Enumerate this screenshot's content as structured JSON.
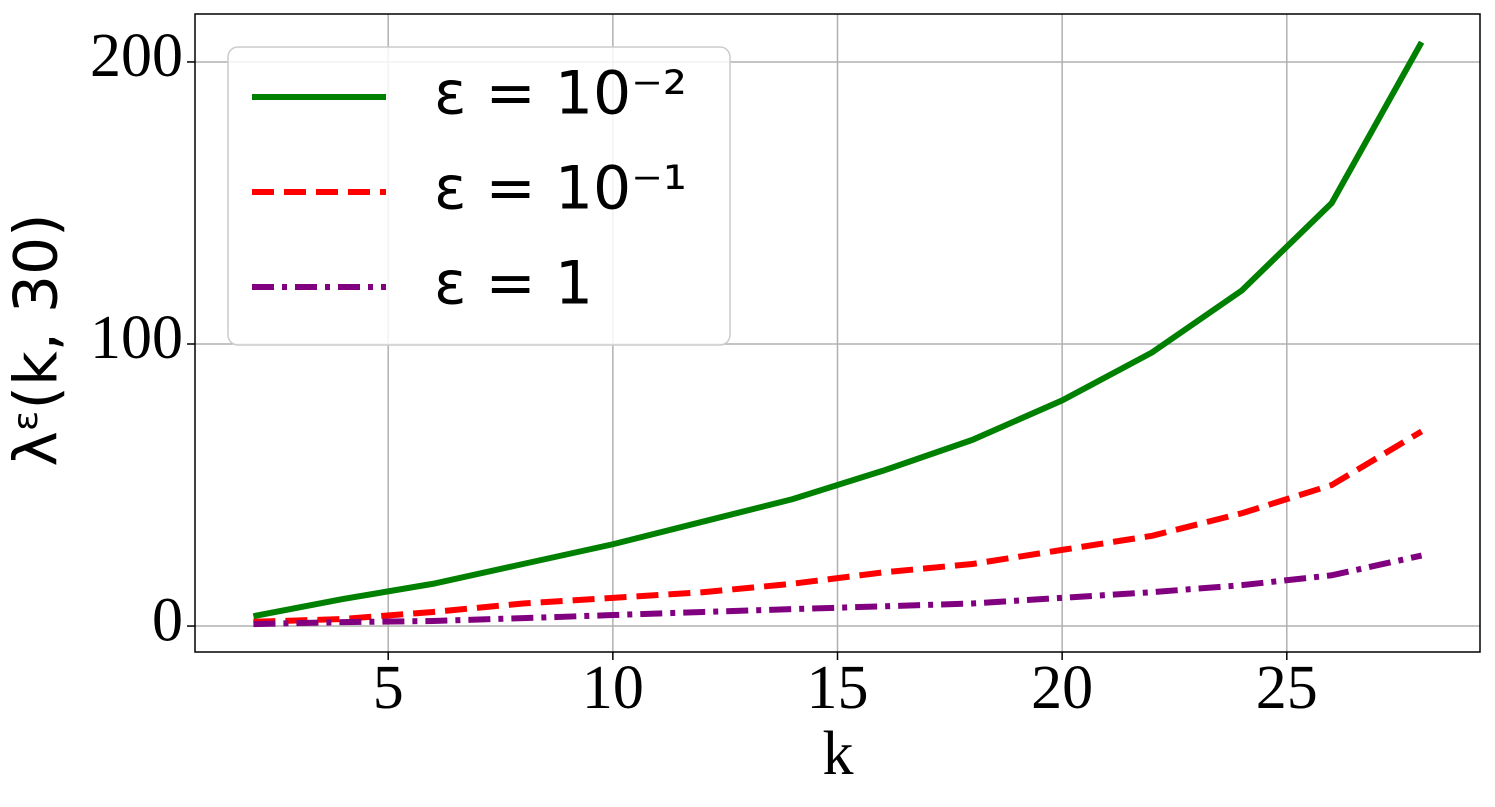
{
  "chart_data": {
    "type": "line",
    "x_label": "k",
    "y_label": "λᵋ(k, 30)",
    "x": [
      2,
      4,
      6,
      8,
      10,
      12,
      14,
      16,
      18,
      20,
      22,
      24,
      26,
      28
    ],
    "series": [
      {
        "name": "ε = 10⁻²",
        "color": "#008000",
        "dash": "solid",
        "values": [
          3.5,
          9.6,
          15,
          22,
          29,
          37,
          45,
          55,
          66,
          80,
          97,
          119,
          150,
          207
        ]
      },
      {
        "name": "ε = 10⁻¹",
        "color": "#ff0000",
        "dash": "dashed",
        "values": [
          1.5,
          2.5,
          5,
          8,
          10,
          12,
          15,
          19,
          22,
          27,
          32,
          40,
          50,
          69
        ]
      },
      {
        "name": "ε = 1",
        "color": "#800080",
        "dash": "dashdot",
        "values": [
          0.7,
          1.4,
          1.8,
          2.8,
          3.9,
          5,
          6,
          7,
          8,
          10,
          12,
          14.5,
          18,
          25
        ]
      }
    ],
    "xlim": [
      0.7,
      29.3
    ],
    "xticks": [
      5,
      10,
      15,
      20,
      25
    ],
    "ylim": [
      -9.2,
      217
    ],
    "yticks": [
      0,
      100,
      200
    ],
    "grid": true,
    "legend": "upper-left"
  }
}
